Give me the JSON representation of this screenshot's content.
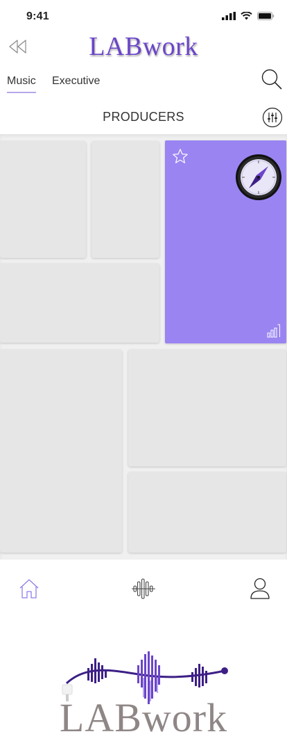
{
  "status_bar": {
    "time": "9:41"
  },
  "header": {
    "app_title": "LABwork",
    "back_icon": "rewind-icon"
  },
  "tabs": [
    {
      "label": "Music",
      "active": true
    },
    {
      "label": "Executive",
      "active": false
    }
  ],
  "section": {
    "title": "PRODUCERS"
  },
  "featured_tile": {
    "accent": "#9a84f2",
    "icons": [
      "star-icon",
      "compass-icon",
      "stats-icon"
    ]
  },
  "bottom_nav": {
    "items": [
      "home-icon",
      "waveform-icon",
      "profile-icon"
    ],
    "active": "home-icon"
  },
  "logo": {
    "text": "LABwork",
    "colors": {
      "primary": "#6b45c9",
      "wave": "#3d1f86",
      "text": "#8f8686"
    }
  }
}
